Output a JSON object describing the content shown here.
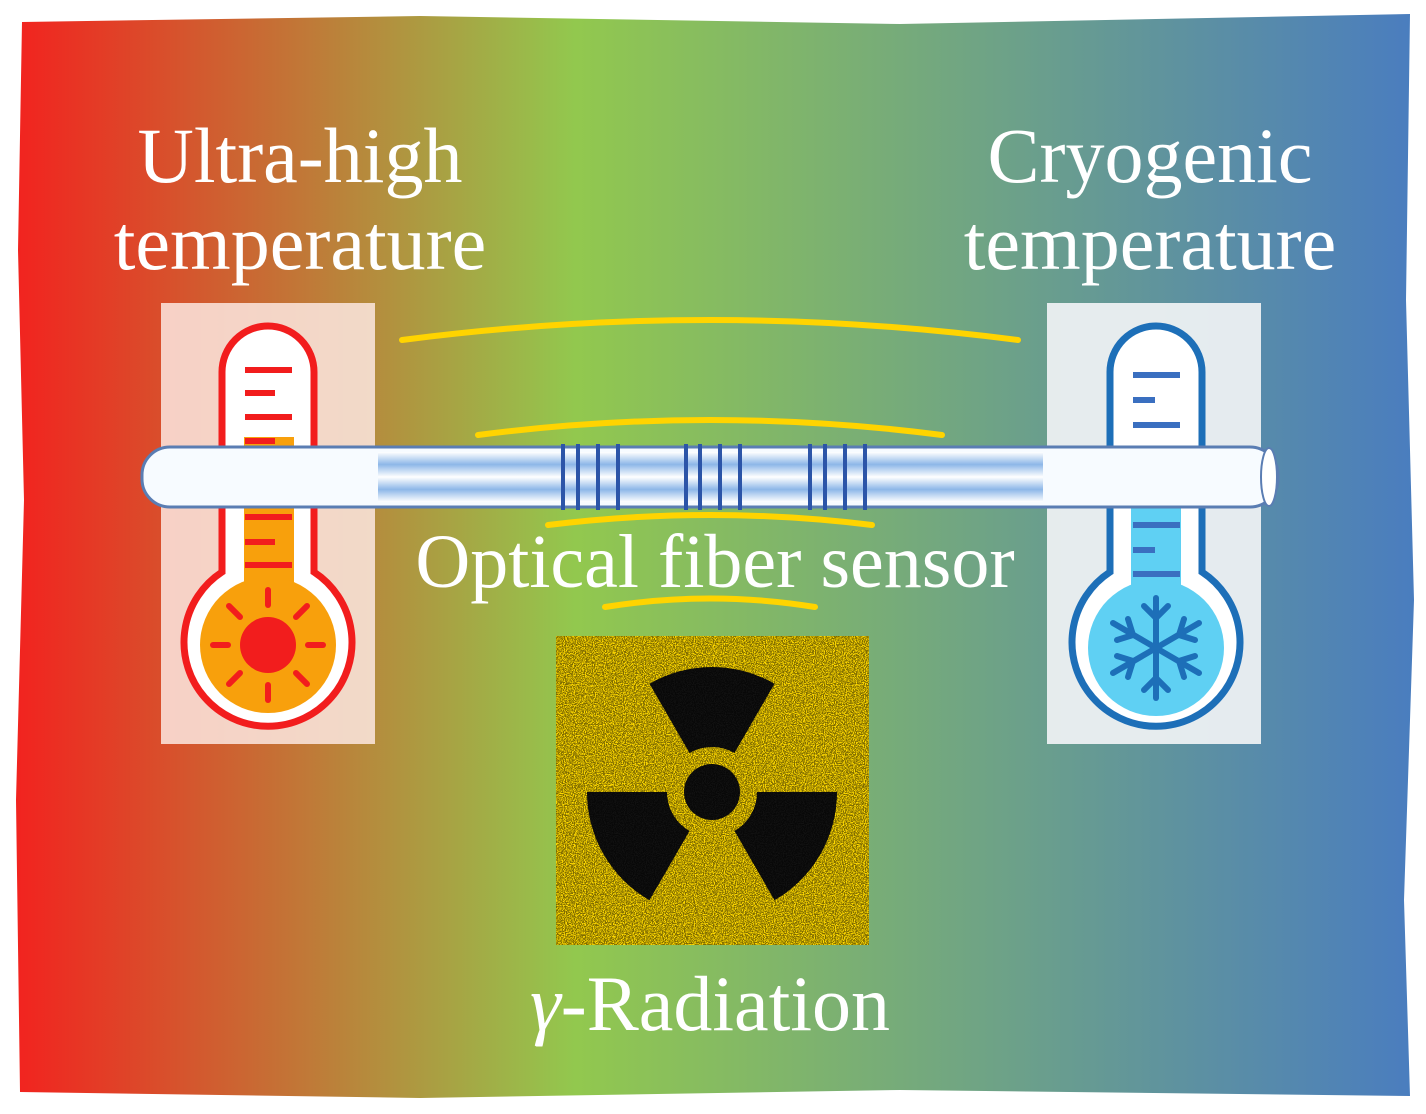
{
  "labels": {
    "hot_line1": "Ultra-high",
    "hot_line2": "temperature",
    "cold_line1": "Cryogenic",
    "cold_line2": "temperature",
    "fiber": "Optical fiber sensor",
    "radiation_symbol": "γ",
    "radiation_text": "-Radiation"
  },
  "icons": {
    "hot": "hot-thermometer-sun-icon",
    "cold": "cold-thermometer-snowflake-icon",
    "radiation": "radiation-trefoil-icon",
    "fiber": "optical-fiber-grating-icon"
  },
  "colors": {
    "gradient_left": "#f2231f",
    "gradient_mid": "#92c84e",
    "gradient_right": "#4a7dbf",
    "hot": "#f21d1d",
    "hot_fill": "#f8a00c",
    "cold": "#1d6fb8",
    "cold_fill": "#5fd0f3",
    "signal": "#ffd400",
    "radiation_bg": "#ffd900"
  }
}
